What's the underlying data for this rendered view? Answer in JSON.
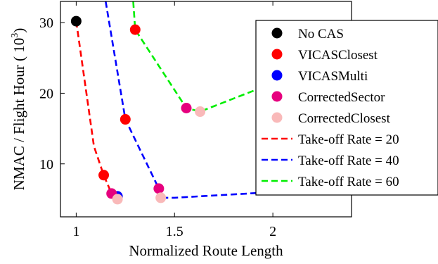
{
  "chart_data": {
    "type": "scatter",
    "xlabel": "Normalized Route Length",
    "ylabel": "NMAC / Flight Hour ( 10",
    "ylabel_exponent": "3",
    "ylabel_suffix": ")",
    "xlim": [
      0.92,
      2.4
    ],
    "ylim": [
      2.5,
      33
    ],
    "x_ticks": [
      1,
      1.5,
      2
    ],
    "x_tick_labels": [
      "1",
      "1.5",
      "2"
    ],
    "y_ticks": [
      10,
      20,
      30
    ],
    "y_tick_labels": [
      "10",
      "20",
      "30"
    ],
    "grid": false,
    "legend_position": "top-right",
    "marker_series": [
      {
        "name": "No CAS",
        "color": "#000000",
        "points": [
          [
            1.0,
            30.2
          ]
        ]
      },
      {
        "name": "VICASClosest",
        "color": "#ff0000",
        "points": [
          [
            1.14,
            8.4
          ],
          [
            1.25,
            16.3
          ],
          [
            1.3,
            29.0
          ]
        ]
      },
      {
        "name": "VICASMulti",
        "color": "#0000ff",
        "points": [
          [
            1.21,
            5.4
          ]
        ]
      },
      {
        "name": "CorrectedSector",
        "color": "#e6007e",
        "points": [
          [
            1.18,
            5.8
          ],
          [
            1.42,
            6.5
          ],
          [
            1.56,
            17.9
          ]
        ]
      },
      {
        "name": "CorrectedClosest",
        "color": "#f9b9b9",
        "points": [
          [
            1.21,
            5.0
          ],
          [
            1.43,
            5.2
          ],
          [
            1.63,
            17.4
          ]
        ]
      }
    ],
    "line_series": [
      {
        "name": "Take-off Rate = 20",
        "color": "#ff0000",
        "points": [
          [
            1.0,
            30.2
          ],
          [
            1.09,
            12.5
          ],
          [
            1.14,
            8.4
          ],
          [
            1.18,
            5.8
          ],
          [
            1.21,
            5.0
          ]
        ]
      },
      {
        "name": "Take-off Rate = 40",
        "color": "#0000ff",
        "points": [
          [
            1.15,
            33
          ],
          [
            1.25,
            16.3
          ],
          [
            1.42,
            6.5
          ],
          [
            1.43,
            5.2
          ],
          [
            1.5,
            5.2
          ],
          [
            2.0,
            6.0
          ]
        ]
      },
      {
        "name": "Take-off Rate = 60",
        "color": "#00ee00",
        "points": [
          [
            1.29,
            33
          ],
          [
            1.3,
            29.0
          ],
          [
            1.56,
            17.9
          ],
          [
            1.63,
            17.4
          ],
          [
            1.98,
            21.2
          ]
        ]
      }
    ]
  }
}
